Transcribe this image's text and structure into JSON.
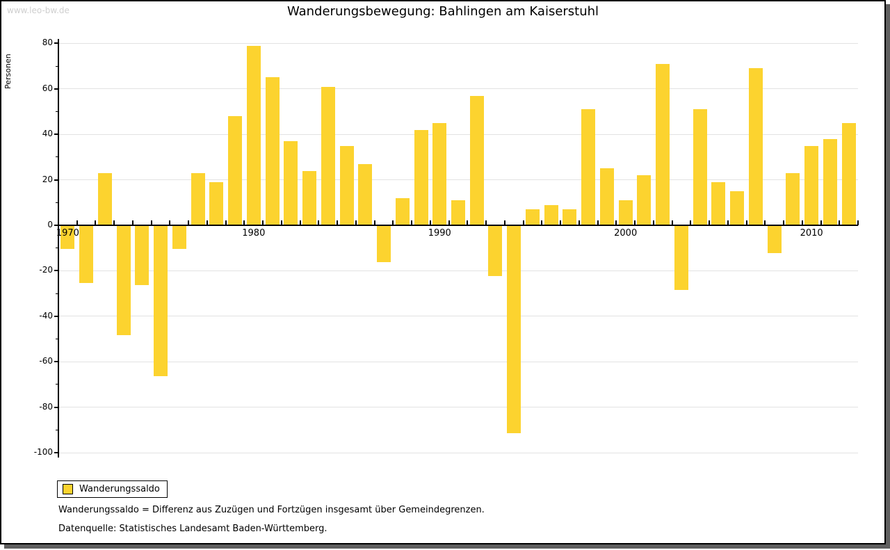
{
  "watermark": "www.leo-bw.de",
  "title": "Wanderungsbewegung: Bahlingen am Kaiserstuhl",
  "legend": {
    "label": "Wanderungssaldo"
  },
  "footnotes": [
    "Wanderungssaldo = Differenz aus Zuzügen und Fortzügen insgesamt über Gemeindegrenzen.",
    "Datenquelle: Statistisches Landesamt Baden-Württemberg."
  ],
  "colors": {
    "bar": "#FCD32F",
    "grid": "#e2e2e2",
    "axis": "#000000",
    "watermark": "#cfcfcf"
  },
  "chart_data": {
    "type": "bar",
    "title": "Wanderungsbewegung: Bahlingen am Kaiserstuhl",
    "xlabel": "",
    "ylabel": "Personen",
    "series_name": "Wanderungssaldo",
    "ylim": [
      -103,
      82
    ],
    "grid": true,
    "legend_position": "bottom-left",
    "yticks": [
      80,
      60,
      40,
      20,
      0,
      -20,
      -40,
      -60,
      -80,
      -100
    ],
    "minor_tick_step": 10,
    "decade_ticks": [
      {
        "year": 1970,
        "label": "1970"
      },
      {
        "year": 1980,
        "label": "1980"
      },
      {
        "year": 1990,
        "label": "1990"
      },
      {
        "year": 2000,
        "label": "2000"
      },
      {
        "year": 2010,
        "label": "2010"
      }
    ],
    "years": [
      1970,
      1971,
      1972,
      1973,
      1974,
      1975,
      1976,
      1977,
      1978,
      1979,
      1980,
      1981,
      1982,
      1983,
      1984,
      1985,
      1986,
      1987,
      1988,
      1989,
      1990,
      1991,
      1992,
      1993,
      1994,
      1995,
      1996,
      1997,
      1998,
      1999,
      2000,
      2001,
      2002,
      2003,
      2004,
      2005,
      2006,
      2007,
      2008,
      2009,
      2010,
      2011,
      2012
    ],
    "values": [
      -10,
      -25,
      23,
      -48,
      -26,
      -66,
      -10,
      23,
      19,
      48,
      79,
      65,
      37,
      24,
      61,
      35,
      27,
      -16,
      12,
      42,
      45,
      11,
      57,
      -22,
      -91,
      7,
      9,
      7,
      51,
      25,
      11,
      22,
      71,
      -28,
      51,
      19,
      15,
      69,
      -12,
      23,
      35,
      38,
      45
    ]
  }
}
